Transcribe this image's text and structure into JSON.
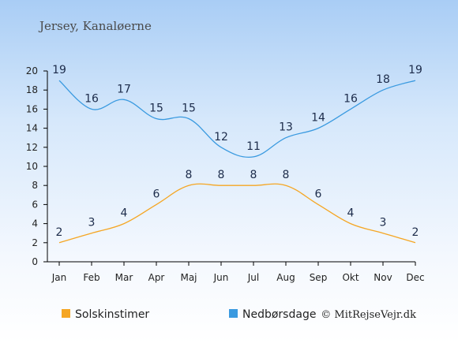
{
  "location": "Jersey, Kanaløerne",
  "credit": "© MitRejseVejr.dk",
  "chart_data": {
    "type": "line",
    "categories": [
      "Jan",
      "Feb",
      "Mar",
      "Apr",
      "Maj",
      "Jun",
      "Jul",
      "Aug",
      "Sep",
      "Okt",
      "Nov",
      "Dec"
    ],
    "ylim": [
      0,
      20
    ],
    "yticks": [
      0,
      2,
      4,
      6,
      8,
      10,
      12,
      14,
      16,
      18,
      20
    ],
    "grid": false,
    "legend": "bottom-left",
    "series": [
      {
        "name": "Solskinstimer",
        "color": "#f5a623",
        "values": [
          2,
          3,
          4,
          6,
          8,
          8,
          8,
          8,
          6,
          4,
          3,
          2
        ]
      },
      {
        "name": "Nedbørsdage",
        "color": "#3a9ae0",
        "values": [
          19,
          16,
          17,
          15,
          15,
          12,
          11,
          13,
          14,
          16,
          18,
          19
        ]
      }
    ]
  }
}
